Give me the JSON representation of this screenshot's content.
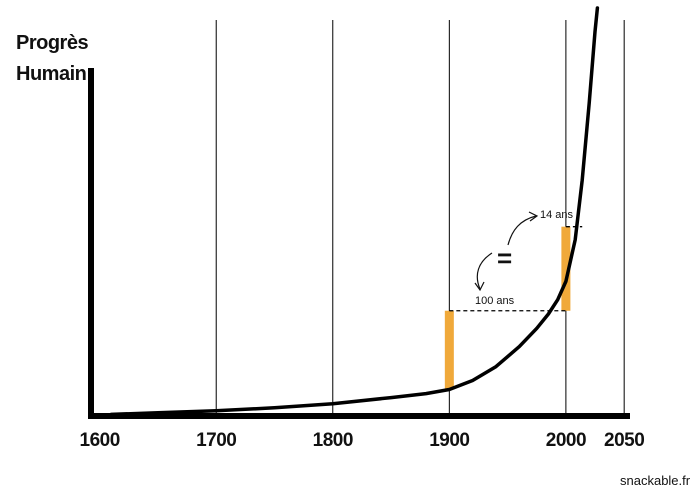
{
  "chart_data": {
    "type": "line",
    "title": "",
    "ylabel_lines": [
      "Progrès",
      "Humain"
    ],
    "xlabel": "",
    "xlim": [
      1590,
      2055
    ],
    "ylim": [
      0,
      100
    ],
    "x_ticks": [
      1600,
      1700,
      1800,
      1900,
      2000,
      2050
    ],
    "grid": {
      "vertical": true,
      "horizontal": false
    },
    "series": [
      {
        "values": [
          {
            "x": 1610,
            "y": 0.4
          },
          {
            "x": 1650,
            "y": 0.8
          },
          {
            "x": 1700,
            "y": 1.3
          },
          {
            "x": 1750,
            "y": 2.0
          },
          {
            "x": 1800,
            "y": 3.0
          },
          {
            "x": 1850,
            "y": 4.5
          },
          {
            "x": 1880,
            "y": 5.5
          },
          {
            "x": 1900,
            "y": 6.5
          },
          {
            "x": 1920,
            "y": 8.7
          },
          {
            "x": 1940,
            "y": 12.1
          },
          {
            "x": 1960,
            "y": 17.0
          },
          {
            "x": 1975,
            "y": 21.5
          },
          {
            "x": 1985,
            "y": 25.0
          },
          {
            "x": 1993,
            "y": 28.5
          },
          {
            "x": 2000,
            "y": 33.0
          },
          {
            "x": 2008,
            "y": 43.2
          },
          {
            "x": 2014,
            "y": 57.8
          },
          {
            "x": 2020,
            "y": 76.7
          },
          {
            "x": 2025,
            "y": 94.2
          },
          {
            "x": 2027,
            "y": 100.0
          }
        ]
      }
    ],
    "annotations": {
      "bars": [
        {
          "x": 1900,
          "y_from": 6.5,
          "y_to": 25.8
        },
        {
          "x": 2000,
          "y_from": 25.8,
          "y_to": 46.4
        }
      ],
      "equals_sign": "=",
      "label_100": "100 ans",
      "label_14": "14 ans",
      "dashed_100": {
        "x_from": 1900,
        "x_to": 2000,
        "y": 25.8
      },
      "dashed_14": {
        "x_from": 2000,
        "x_to": 2014,
        "y": 46.4
      }
    },
    "colors": {
      "curve": "#000000",
      "bar": "#f0a93a",
      "grid": "#000000",
      "text": "#111111"
    }
  },
  "watermark": "snackable.fr"
}
